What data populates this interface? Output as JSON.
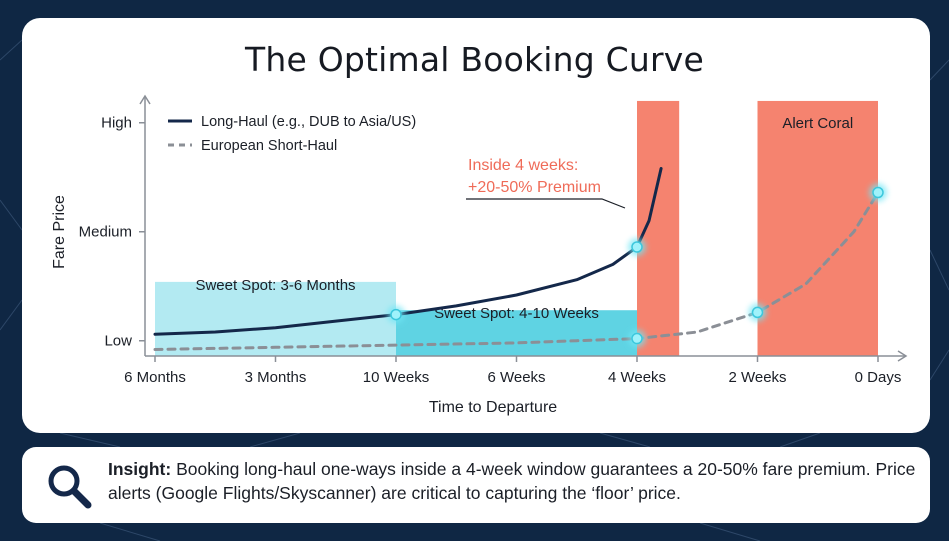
{
  "insight": {
    "label": "Insight:",
    "text": "Booking long-haul one-ways inside a 4-week window guarantees a 20-50% fare premium. Price alerts (Google Flights/Skyscanner) are critical to capturing the ‘floor’ price.",
    "icon": "magnifier-icon"
  },
  "chart_data": {
    "type": "line",
    "title": "The Optimal Booking Curve",
    "xlabel": "Time to Departure",
    "ylabel": "Fare Price",
    "categories": [
      "6 Months",
      "3 Months",
      "10 Weeks",
      "6 Weeks",
      "4 Weeks",
      "2 Weeks",
      "0 Days"
    ],
    "y_ticks": [
      "Low",
      "Medium",
      "High"
    ],
    "ylim": [
      0,
      1
    ],
    "legend_position": "top-left",
    "series": [
      {
        "name": "Long-Haul (e.g., DUB to Asia/US)",
        "style": "solid",
        "color": "#14284a",
        "x": [
          0,
          0.5,
          1,
          1.5,
          2,
          2.5,
          3,
          3.5,
          3.8,
          4,
          4.1,
          4.2
        ],
        "values": [
          0.1,
          0.11,
          0.13,
          0.16,
          0.19,
          0.23,
          0.28,
          0.35,
          0.42,
          0.5,
          0.62,
          0.86
        ],
        "highlight_points": [
          [
            2,
            0.19
          ],
          [
            4,
            0.5
          ]
        ]
      },
      {
        "name": "European Short-Haul",
        "style": "dashed",
        "color": "#8b8f96",
        "x": [
          0,
          1,
          2,
          3,
          3.5,
          4,
          4.5,
          5,
          5.4,
          5.8,
          6
        ],
        "values": [
          0.03,
          0.04,
          0.05,
          0.06,
          0.07,
          0.08,
          0.11,
          0.2,
          0.33,
          0.57,
          0.75
        ],
        "highlight_points": [
          [
            4,
            0.08
          ],
          [
            5,
            0.2
          ],
          [
            6,
            0.75
          ]
        ]
      }
    ],
    "regions": [
      {
        "label": "Sweet Spot: 3-6 Months",
        "x_start": 0,
        "x_end": 2,
        "height": 0.34,
        "color": "#b3eaf2"
      },
      {
        "label": "Sweet Spot: 4-10 Weeks",
        "x_start": 2,
        "x_end": 4,
        "height": 0.21,
        "color": "#5fd3e3"
      },
      {
        "label": "",
        "x_start": 4,
        "x_end": 4.35,
        "height": 1.17,
        "color": "#f5836f"
      },
      {
        "label": "Alert Coral",
        "x_start": 5,
        "x_end": 6,
        "height": 1.17,
        "color": "#f5836f"
      }
    ],
    "annotations": [
      {
        "text": "Inside 4 weeks:",
        "color": "#ef6b58"
      },
      {
        "text": "+20-50% Premium",
        "color": "#ef6b58"
      }
    ],
    "grid": false
  }
}
